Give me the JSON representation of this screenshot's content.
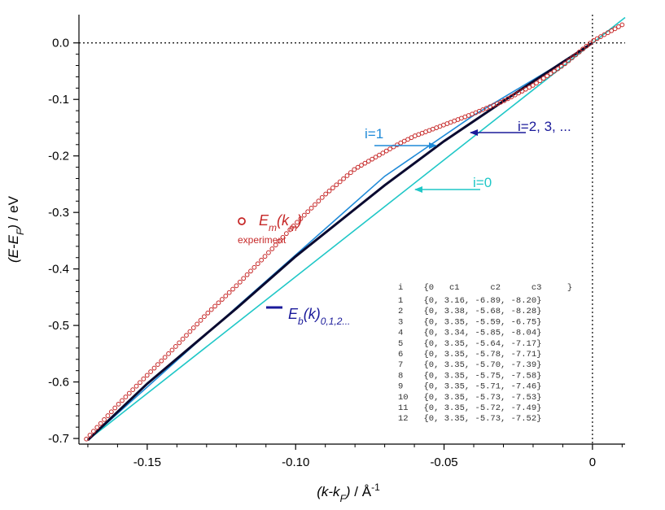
{
  "chart_data": {
    "type": "line",
    "xlabel": "(k-k_F) / Å^-1",
    "ylabel": "(E-E_F) / eV",
    "xlim": [
      -0.173,
      0.011
    ],
    "ylim": [
      -0.71,
      0.05
    ],
    "xticks": [
      -0.15,
      -0.1,
      -0.05,
      0
    ],
    "xtick_labels": [
      "-0.15",
      "-0.10",
      "-0.05",
      "0"
    ],
    "yticks": [
      0.0,
      -0.1,
      -0.2,
      -0.3,
      -0.4,
      -0.5,
      -0.6,
      -0.7
    ],
    "ytick_labels": [
      "0.0",
      "-0.1",
      "-0.2",
      "-0.3",
      "-0.4",
      "-0.5",
      "-0.6",
      "-0.7"
    ],
    "reference_lines": {
      "x": 0,
      "y": 0,
      "style": "dotted"
    },
    "series": [
      {
        "name": "i=0",
        "color": "#1fc7c7",
        "style": "line",
        "x": [
          -0.17,
          0.011
        ],
        "y": [
          -0.703,
          0.045
        ]
      },
      {
        "name": "i=1",
        "color": "#1f8ad8",
        "style": "line",
        "x": [
          -0.17,
          -0.12,
          -0.07,
          -0.04,
          -0.01,
          0.0
        ],
        "y": [
          -0.703,
          -0.468,
          -0.236,
          -0.128,
          -0.034,
          0.0
        ]
      },
      {
        "name": "i=2, 3, ...",
        "color": "#0a0a30",
        "style": "line",
        "x": [
          -0.17,
          -0.15,
          -0.12,
          -0.1,
          -0.07,
          -0.05,
          -0.03,
          -0.01,
          0.0
        ],
        "y": [
          -0.703,
          -0.603,
          -0.47,
          -0.378,
          -0.252,
          -0.174,
          -0.103,
          -0.034,
          0.0
        ]
      },
      {
        "name": "experiment",
        "color": "#c62828",
        "style": "markers",
        "x": [
          -0.1705,
          -0.16,
          -0.15,
          -0.14,
          -0.13,
          -0.12,
          -0.11,
          -0.1,
          -0.09,
          -0.08,
          -0.07,
          -0.065,
          -0.06,
          -0.055,
          -0.05,
          -0.04,
          -0.03,
          -0.02,
          -0.01,
          0.0,
          0.01
        ],
        "y": [
          -0.701,
          -0.641,
          -0.588,
          -0.535,
          -0.48,
          -0.43,
          -0.376,
          -0.32,
          -0.268,
          -0.223,
          -0.193,
          -0.178,
          -0.165,
          -0.155,
          -0.145,
          -0.125,
          -0.103,
          -0.075,
          -0.04,
          0.003,
          0.032
        ]
      }
    ],
    "annotations": {
      "i1": {
        "text": "i=1",
        "color": "#1f8ad8"
      },
      "i2": {
        "text": "i=2, 3, ...",
        "color": "#1a1a9a"
      },
      "i0": {
        "text": "i=0",
        "color": "#1fc7c7"
      }
    },
    "legend": {
      "experiment_main": "E",
      "experiment_sub_m": "m",
      "experiment_paren": "(k",
      "experiment_close": ")",
      "experiment_note": "experiment",
      "band_main": "E",
      "band_sub_b": "b",
      "band_paren": "(k)",
      "band_sub": "0,1,2..."
    },
    "table": {
      "header": "i    {0   c1      c2      c3     }",
      "rows": [
        "1    {0, 3.16, -6.89, -8.20}",
        "2    {0, 3.38, -5.68, -8.28}",
        "3    {0, 3.35, -5.59, -6.75}",
        "4    {0, 3.34, -5.85, -8.04}",
        "5    {0, 3.35, -5.64, -7.17}",
        "6    {0, 3.35, -5.78, -7.71}",
        "7    {0, 3.35, -5.70, -7.39}",
        "8    {0, 3.35, -5.75, -7.58}",
        "9    {0, 3.35, -5.71, -7.46}",
        "10   {0, 3.35, -5.73, -7.53}",
        "11   {0, 3.35, -5.72, -7.49}",
        "12   {0, 3.35, -5.73, -7.52}"
      ]
    }
  }
}
